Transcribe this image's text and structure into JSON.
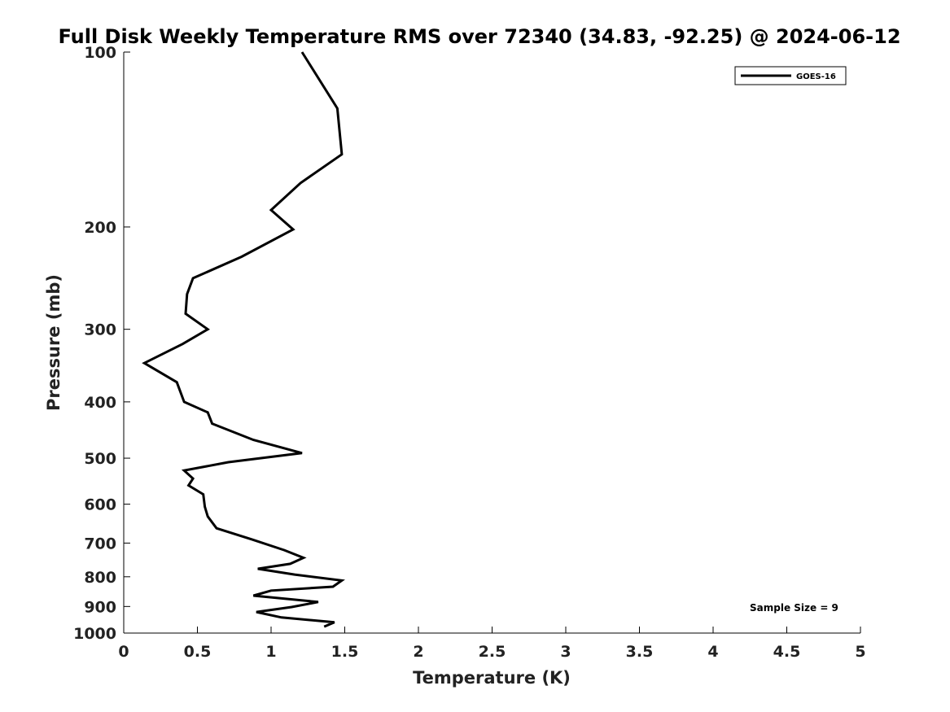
{
  "chart_data": {
    "type": "line",
    "title": "Full Disk Weekly Temperature RMS over 72340 (34.83, -92.25) @ 2024-06-12",
    "xlabel": "Temperature (K)",
    "ylabel": "Pressure (mb)",
    "xlim": [
      0,
      5
    ],
    "ylim": [
      1000,
      100
    ],
    "y_scale": "log",
    "y_reversed": true,
    "grid": false,
    "legend_position": "top-right",
    "x_ticks": [
      "0",
      "0.5",
      "1",
      "1.5",
      "2",
      "2.5",
      "3",
      "3.5",
      "4",
      "4.5",
      "5"
    ],
    "y_ticks": [
      "100",
      "200",
      "300",
      "400",
      "500",
      "600",
      "700",
      "800",
      "900",
      "1000"
    ],
    "annotation": "Sample Size = 9",
    "series": [
      {
        "name": "GOES-16",
        "color": "#000000",
        "points": [
          [
            1.21,
            100
          ],
          [
            1.45,
            125
          ],
          [
            1.48,
            150
          ],
          [
            1.2,
            168
          ],
          [
            1.0,
            187
          ],
          [
            1.15,
            202
          ],
          [
            0.8,
            225
          ],
          [
            0.47,
            245
          ],
          [
            0.43,
            261
          ],
          [
            0.42,
            282
          ],
          [
            0.57,
            300
          ],
          [
            0.4,
            318
          ],
          [
            0.14,
            343
          ],
          [
            0.36,
            370
          ],
          [
            0.41,
            400
          ],
          [
            0.57,
            417
          ],
          [
            0.6,
            436
          ],
          [
            0.88,
            465
          ],
          [
            1.21,
            490
          ],
          [
            0.71,
            508
          ],
          [
            0.41,
            525
          ],
          [
            0.47,
            542
          ],
          [
            0.44,
            557
          ],
          [
            0.54,
            577
          ],
          [
            0.55,
            606
          ],
          [
            0.57,
            630
          ],
          [
            0.63,
            660
          ],
          [
            0.87,
            690
          ],
          [
            1.09,
            720
          ],
          [
            1.22,
            742
          ],
          [
            1.13,
            760
          ],
          [
            0.91,
            775
          ],
          [
            1.16,
            793
          ],
          [
            1.48,
            812
          ],
          [
            1.42,
            832
          ],
          [
            1.0,
            845
          ],
          [
            0.88,
            862
          ],
          [
            1.32,
            884
          ],
          [
            1.14,
            902
          ],
          [
            0.9,
            920
          ],
          [
            1.07,
            940
          ],
          [
            1.43,
            958
          ],
          [
            1.36,
            975
          ]
        ]
      }
    ]
  }
}
